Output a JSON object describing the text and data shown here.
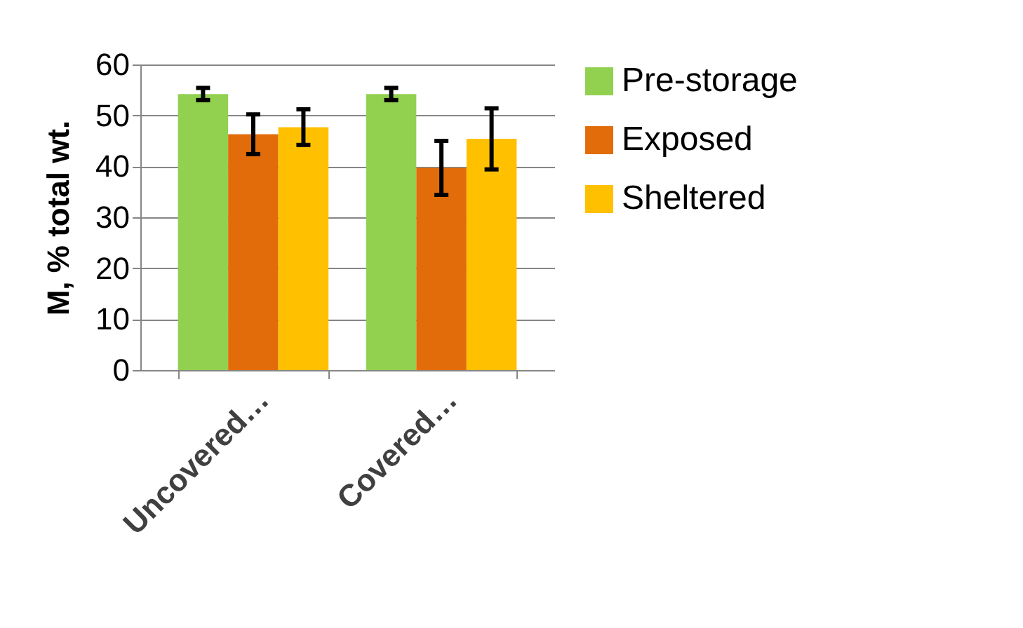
{
  "chart_data": {
    "type": "bar",
    "categories": [
      "Uncovered…",
      "Covered…"
    ],
    "ylabel": "M, % total wt.",
    "ylim": [
      0,
      60
    ],
    "yticks": [
      0,
      10,
      20,
      30,
      40,
      50,
      60
    ],
    "grid": "y",
    "legend": "right",
    "series": [
      {
        "name": "Pre-storage",
        "color": "#92d050",
        "values": [
          54.2,
          54.2
        ],
        "errors": [
          1.2,
          1.2
        ]
      },
      {
        "name": "Exposed",
        "color": "#e36c0a",
        "values": [
          46.3,
          39.7
        ],
        "errors": [
          3.9,
          5.3
        ]
      },
      {
        "name": "Sheltered",
        "color": "#ffc000",
        "values": [
          47.7,
          45.4
        ],
        "errors": [
          3.5,
          6
        ]
      }
    ]
  }
}
